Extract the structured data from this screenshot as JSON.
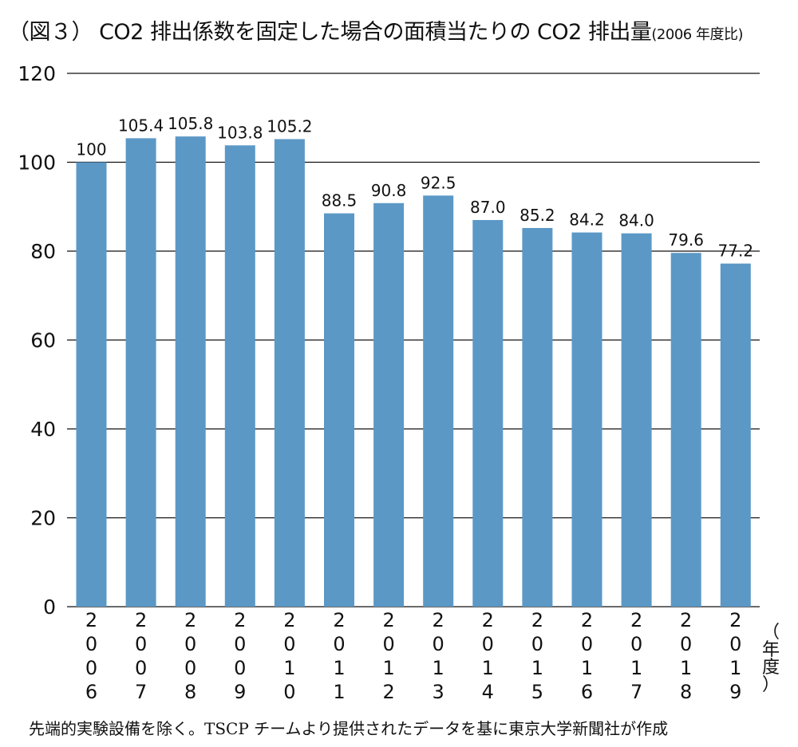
{
  "title": {
    "main": "（図３） CO2 排出係数を固定した場合の面積当たりの CO2 排出量",
    "sub": "(2006 年度比)"
  },
  "x_unit": "（年度）",
  "note": "先端的実験設備を除く。TSCP チームより提供されたデータを基に東京大学新聞社が作成",
  "colors": {
    "bar": "#5b98c6",
    "grid": "#111111",
    "text": "#111111"
  },
  "chart_data": {
    "type": "bar",
    "categories": [
      "2006",
      "2007",
      "2008",
      "2009",
      "2010",
      "2011",
      "2012",
      "2013",
      "2014",
      "2015",
      "2016",
      "2017",
      "2018",
      "2019"
    ],
    "values": [
      100,
      105.4,
      105.8,
      103.8,
      105.2,
      88.5,
      90.8,
      92.5,
      87.0,
      85.2,
      84.2,
      84.0,
      79.6,
      77.2
    ],
    "value_labels": [
      "100",
      "105.4",
      "105.8",
      "103.8",
      "105.2",
      "88.5",
      "90.8",
      "92.5",
      "87.0",
      "85.2",
      "84.2",
      "84.0",
      "79.6",
      "77.2"
    ],
    "y_ticks": [
      "0",
      "20",
      "40",
      "60",
      "80",
      "100",
      "120"
    ],
    "ylim": [
      0,
      120
    ],
    "grid": true,
    "legend": "none",
    "xlabel": "（年度）",
    "ylabel": ""
  }
}
